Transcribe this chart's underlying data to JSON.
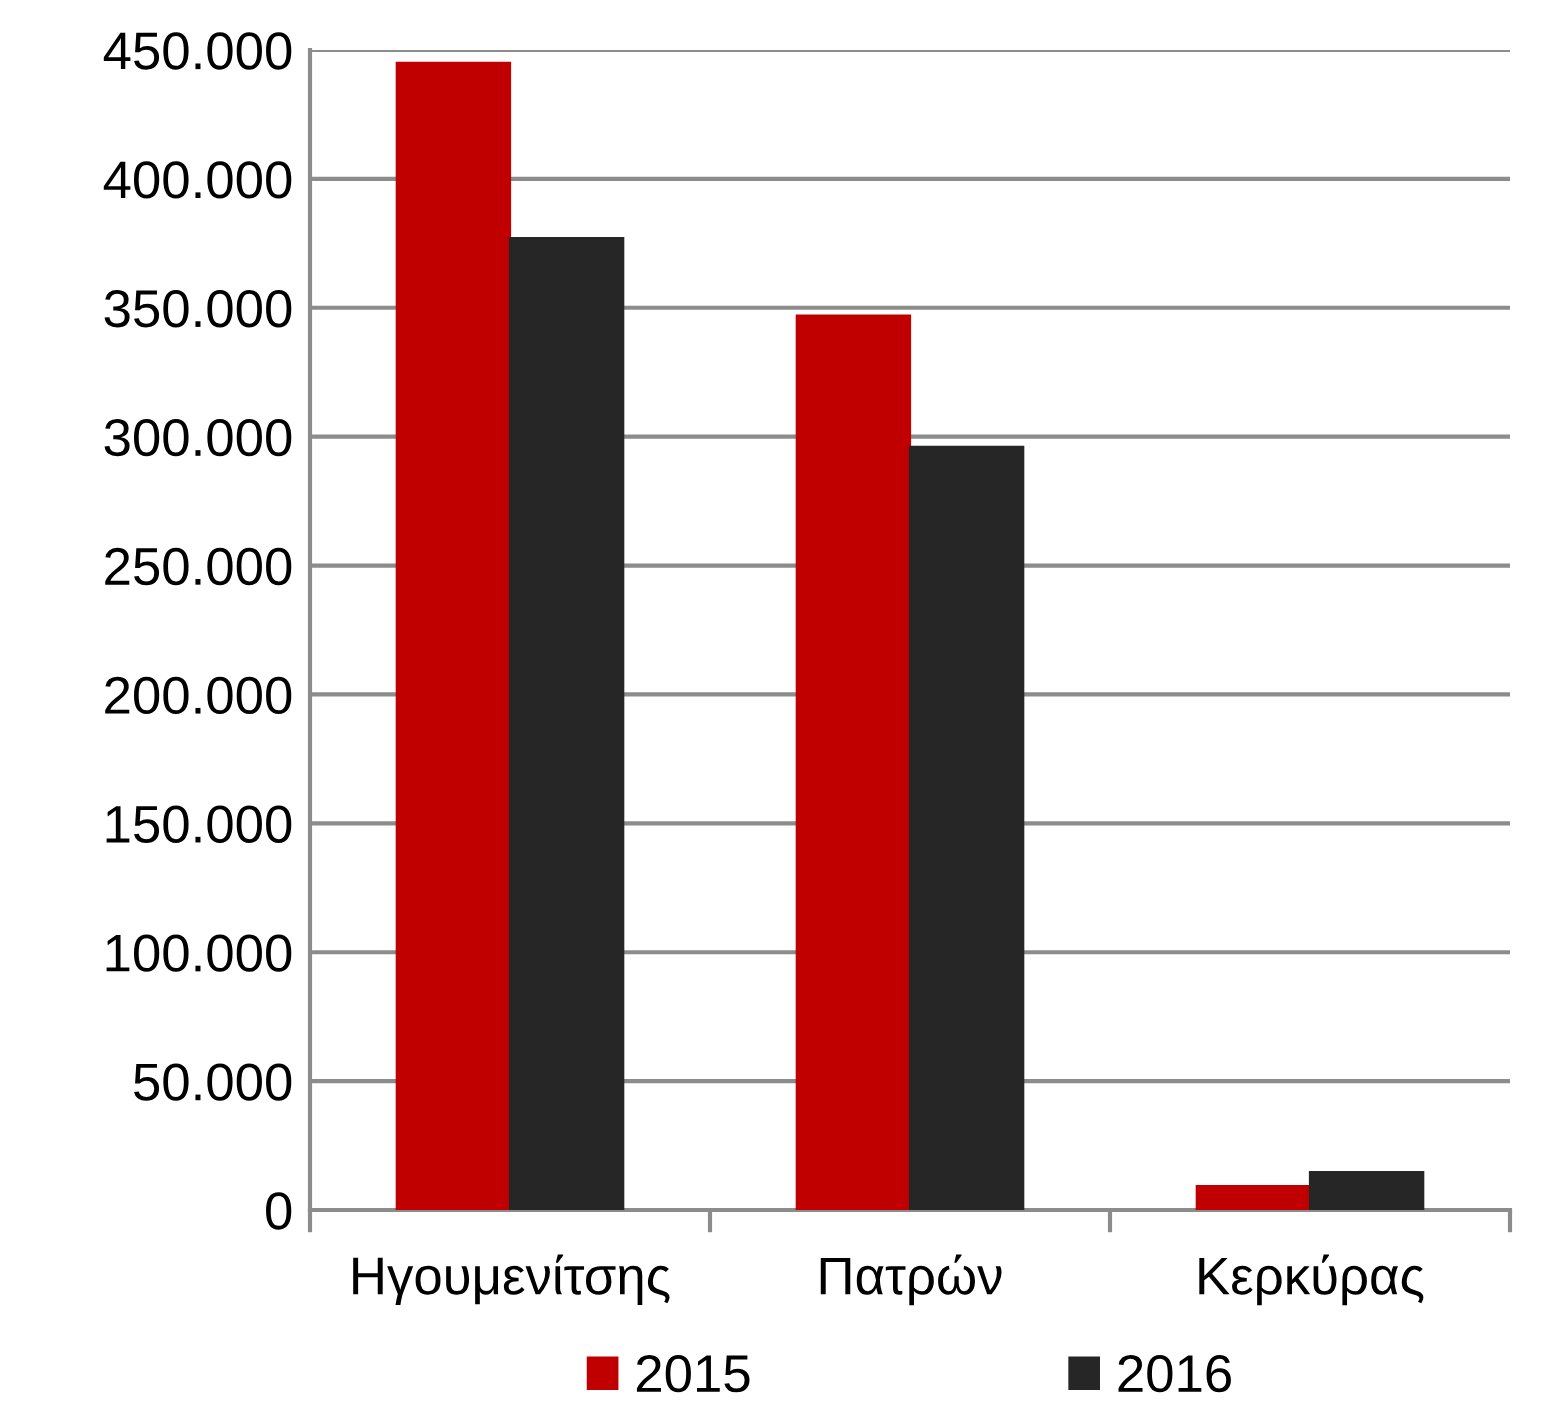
{
  "chart_data": {
    "type": "bar",
    "categories": [
      "Ηγουμενίτσης",
      "Πατρών",
      "Κερκύρας"
    ],
    "series": [
      {
        "name": "2015",
        "color": "#c00000",
        "values": [
          445000,
          347000,
          9300
        ]
      },
      {
        "name": "2016",
        "color": "#262626",
        "values": [
          377000,
          296000,
          14700
        ]
      }
    ],
    "ylim": [
      0,
      450000
    ],
    "yticks": [
      {
        "value": 0,
        "label": "0"
      },
      {
        "value": 50000,
        "label": "50.000"
      },
      {
        "value": 100000,
        "label": "100.000"
      },
      {
        "value": 150000,
        "label": "150.000"
      },
      {
        "value": 200000,
        "label": "200.000"
      },
      {
        "value": 250000,
        "label": "250.000"
      },
      {
        "value": 300000,
        "label": "300.000"
      },
      {
        "value": 350000,
        "label": "350.000"
      },
      {
        "value": 400000,
        "label": "400.000"
      },
      {
        "value": 450000,
        "label": "450.000"
      }
    ],
    "grid": "y",
    "legend": "bottom"
  }
}
